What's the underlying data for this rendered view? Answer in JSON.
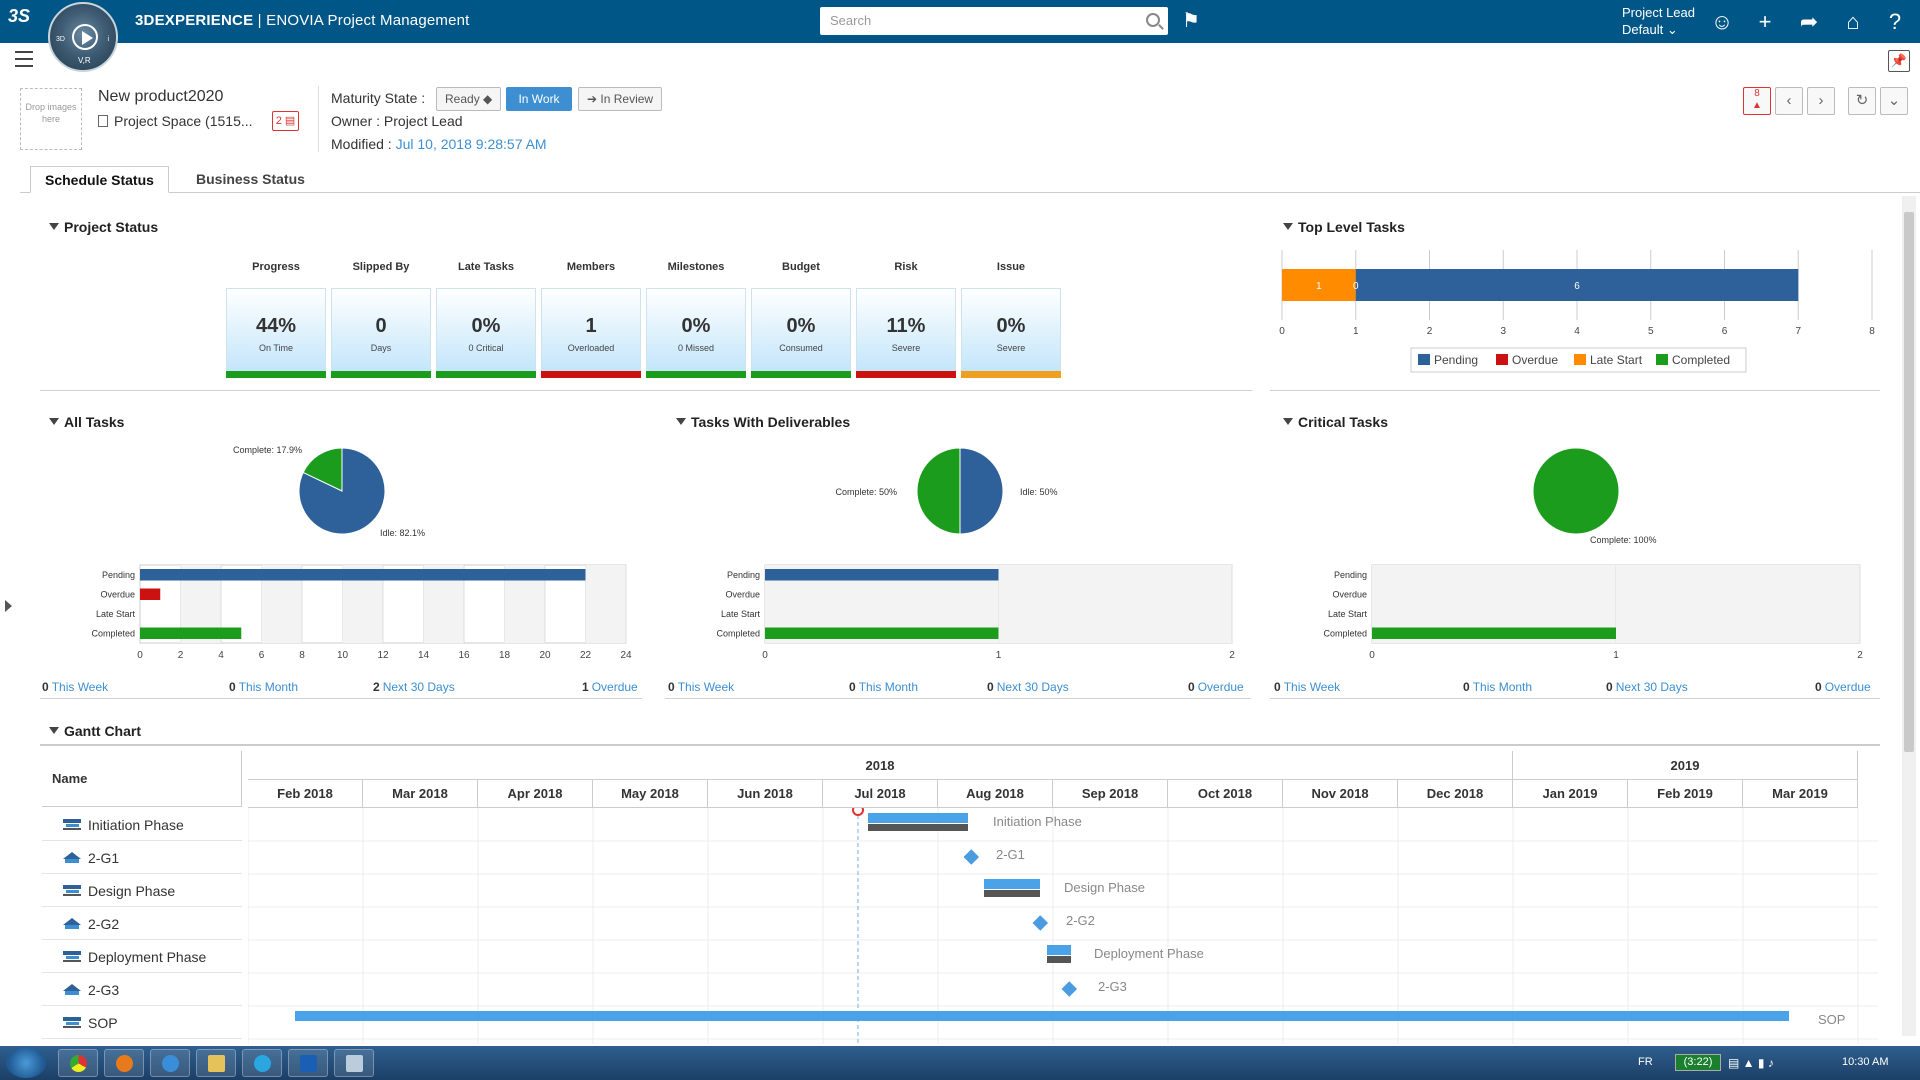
{
  "topbar": {
    "brand": "3DEXPERIENCE",
    "app_name": "| ENOVIA  Project Management",
    "search_placeholder": "Search",
    "role": "Project Lead",
    "context": "Default"
  },
  "header": {
    "drop_images": "Drop images here",
    "title": "New product2020",
    "subtitle": "Project Space (1515...",
    "badge": "2",
    "maturity_label": "Maturity State :",
    "states": [
      "Ready",
      "In Work",
      "In Review"
    ],
    "active_state": "In Work",
    "owner": "Owner :  Project Lead",
    "modified_label": "Modified :",
    "modified_value": "Jul 10, 2018 9:28:57 AM",
    "notification_count": "8"
  },
  "tabs": [
    "Schedule Status",
    "Business Status"
  ],
  "project_status": {
    "title": "Project Status",
    "kpis": [
      {
        "label": "Progress",
        "value": "44%",
        "sub": "On Time",
        "color": "#1c9c1c"
      },
      {
        "label": "Slipped By",
        "value": "0",
        "sub": "Days",
        "color": "#1c9c1c"
      },
      {
        "label": "Late Tasks",
        "value": "0%",
        "sub": "0 Critical",
        "color": "#1c9c1c"
      },
      {
        "label": "Members",
        "value": "1",
        "sub": "Overloaded",
        "color": "#cc1111"
      },
      {
        "label": "Milestones",
        "value": "0%",
        "sub": "0 Missed",
        "color": "#1c9c1c"
      },
      {
        "label": "Budget",
        "value": "0%",
        "sub": "Consumed",
        "color": "#1c9c1c"
      },
      {
        "label": "Risk",
        "value": "11%",
        "sub": "Severe",
        "color": "#cc1111"
      },
      {
        "label": "Issue",
        "value": "0%",
        "sub": "Severe",
        "color": "#f0a020"
      }
    ]
  },
  "top_level_tasks": {
    "title": "Top Level Tasks",
    "chart_data": {
      "type": "bar",
      "orientation": "horizontal",
      "stacked": true,
      "series": [
        {
          "name": "Late Start",
          "values": [
            1
          ],
          "color": "#ff8c00"
        },
        {
          "name": "Pending",
          "values": [
            6
          ],
          "color": "#2e619a"
        }
      ],
      "xlim": [
        0,
        8
      ],
      "xticks": [
        "0",
        "1",
        "2",
        "3",
        "4",
        "5",
        "6",
        "7",
        "8"
      ],
      "data_labels": [
        "1",
        "0",
        "6"
      ],
      "legend": [
        "Pending",
        "Overdue",
        "Late Start",
        "Completed"
      ],
      "legend_colors": [
        "#2e619a",
        "#cc1111",
        "#ff8c00",
        "#1c9c1c"
      ]
    }
  },
  "all_tasks": {
    "title": "All Tasks",
    "pie": {
      "type": "pie",
      "slices": [
        {
          "label": "Complete: 17.9%",
          "value": 17.9,
          "color": "#1c9c1c"
        },
        {
          "label": "Idle: 82.1%",
          "value": 82.1,
          "color": "#2e619a"
        }
      ]
    },
    "chart_data": {
      "type": "bar",
      "orientation": "horizontal",
      "categories": [
        "Pending",
        "Overdue",
        "Late Start",
        "Completed"
      ],
      "values": [
        22,
        1,
        0,
        5
      ],
      "colors": [
        "#2e619a",
        "#cc1111",
        "#ff8c00",
        "#1c9c1c"
      ],
      "xlim": [
        0,
        24
      ],
      "xticks": [
        "0",
        "2",
        "4",
        "6",
        "8",
        "10",
        "12",
        "14",
        "16",
        "18",
        "20",
        "22",
        "24"
      ]
    },
    "stats": [
      {
        "n": "0",
        "label": "This Week"
      },
      {
        "n": "0",
        "label": "This Month"
      },
      {
        "n": "2",
        "label": "Next 30 Days"
      },
      {
        "n": "1",
        "label": "Overdue"
      }
    ]
  },
  "tasks_with_deliverables": {
    "title": "Tasks With Deliverables",
    "pie": {
      "type": "pie",
      "slices": [
        {
          "label": "Complete: 50%",
          "value": 50,
          "color": "#1c9c1c"
        },
        {
          "label": "Idle: 50%",
          "value": 50,
          "color": "#2e619a"
        }
      ]
    },
    "chart_data": {
      "type": "bar",
      "orientation": "horizontal",
      "categories": [
        "Pending",
        "Overdue",
        "Late Start",
        "Completed"
      ],
      "values": [
        1,
        0,
        0,
        1
      ],
      "colors": [
        "#2e619a",
        "#cc1111",
        "#ff8c00",
        "#1c9c1c"
      ],
      "xlim": [
        0,
        2
      ],
      "xticks": [
        "0",
        "1",
        "2"
      ]
    },
    "stats": [
      {
        "n": "0",
        "label": "This Week"
      },
      {
        "n": "0",
        "label": "This Month"
      },
      {
        "n": "0",
        "label": "Next 30 Days"
      },
      {
        "n": "0",
        "label": "Overdue"
      }
    ]
  },
  "critical_tasks": {
    "title": "Critical Tasks",
    "pie": {
      "type": "pie",
      "slices": [
        {
          "label": "Complete: 100%",
          "value": 100,
          "color": "#1c9c1c"
        }
      ]
    },
    "chart_data": {
      "type": "bar",
      "orientation": "horizontal",
      "categories": [
        "Pending",
        "Overdue",
        "Late Start",
        "Completed"
      ],
      "values": [
        0,
        0,
        0,
        1
      ],
      "colors": [
        "#2e619a",
        "#cc1111",
        "#ff8c00",
        "#1c9c1c"
      ],
      "xlim": [
        0,
        2
      ],
      "xticks": [
        "0",
        "1",
        "2"
      ]
    },
    "stats": [
      {
        "n": "0",
        "label": "This Week"
      },
      {
        "n": "0",
        "label": "This Month"
      },
      {
        "n": "0",
        "label": "Next 30 Days"
      },
      {
        "n": "0",
        "label": "Overdue"
      }
    ]
  },
  "gantt": {
    "title": "Gantt Chart",
    "name_header": "Name",
    "years": [
      "2018",
      "2019"
    ],
    "months": [
      "Feb 2018",
      "Mar 2018",
      "Apr 2018",
      "May 2018",
      "Jun 2018",
      "Jul 2018",
      "Aug 2018",
      "Sep 2018",
      "Oct 2018",
      "Nov 2018",
      "Dec 2018",
      "Jan 2019",
      "Feb 2019",
      "Mar 2019"
    ],
    "rows": [
      {
        "name": "Initiation Phase",
        "kind": "phase"
      },
      {
        "name": "2-G1",
        "kind": "gate"
      },
      {
        "name": "Design Phase",
        "kind": "phase"
      },
      {
        "name": "2-G2",
        "kind": "gate"
      },
      {
        "name": "Deployment Phase",
        "kind": "phase"
      },
      {
        "name": "2-G3",
        "kind": "gate"
      },
      {
        "name": "SOP",
        "kind": "phase"
      }
    ]
  },
  "taskbar": {
    "lang": "FR",
    "battery": "(3:22)",
    "time": "10:30 AM"
  }
}
